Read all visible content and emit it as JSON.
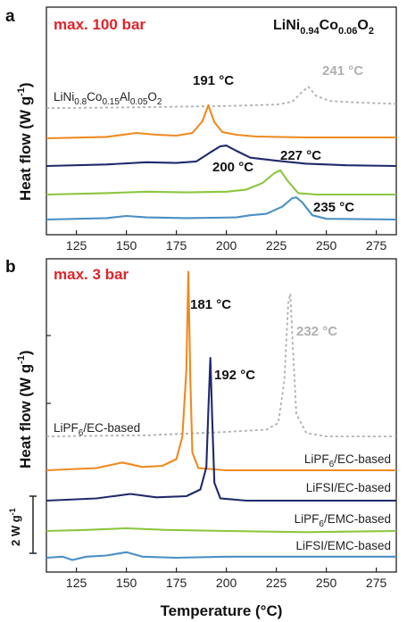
{
  "colors": {
    "orange": "#ef8a1f",
    "navy": "#1f2a6b",
    "green": "#8cc63f",
    "blue": "#4a8fc4",
    "gray": "#b0b0b0",
    "red": "#e0242a"
  },
  "chart_data": [
    {
      "panel": "a",
      "type": "line",
      "condition": "max. 100 bar",
      "formula": {
        "base": "LiNi",
        "s1": "0.94",
        "mid": "Co",
        "s2": "0.06",
        "end": "O",
        "s3": "2"
      },
      "ylabel": {
        "main": "Heat flow (W g",
        "sup": "-1",
        "close": ")"
      },
      "xlim": [
        110,
        285
      ],
      "x_ticks": [
        "125",
        "150",
        "175",
        "200",
        "225",
        "250",
        "275"
      ],
      "reference_label": {
        "a": "LiNi",
        "s1": "0.8",
        "b": "Co",
        "s2": "0.15",
        "c": "Al",
        "s3": "0.05",
        "d": "O",
        "s4": "2"
      },
      "series": [
        {
          "color": "gray",
          "dashed": true,
          "peak_x": 241,
          "peak_label": "241 °C",
          "x": [
            110,
            150,
            200,
            225,
            233,
            238,
            241,
            245,
            252,
            265,
            285
          ],
          "y": [
            0.05,
            0.1,
            0.2,
            0.3,
            0.5,
            1.2,
            1.55,
            0.9,
            0.55,
            0.45,
            0.35
          ]
        },
        {
          "color": "orange",
          "dashed": false,
          "peak_x": 191,
          "peak_label": "191 °C",
          "x": [
            110,
            140,
            155,
            165,
            175,
            183,
            188,
            191,
            194,
            198,
            205,
            215,
            240,
            285
          ],
          "y": [
            0.0,
            0.08,
            0.3,
            0.2,
            0.15,
            0.3,
            0.95,
            1.85,
            0.9,
            0.35,
            0.2,
            0.1,
            0.05,
            0.05
          ]
        },
        {
          "color": "navy",
          "dashed": false,
          "peak_x": 200,
          "peak_label": "200 °C",
          "x": [
            110,
            140,
            160,
            175,
            185,
            192,
            197,
            200,
            205,
            212,
            225,
            240,
            260,
            285
          ],
          "y": [
            0.0,
            0.1,
            0.25,
            0.2,
            0.3,
            0.9,
            1.3,
            1.35,
            1.0,
            0.55,
            0.35,
            0.15,
            0.05,
            0.0
          ]
        },
        {
          "color": "green",
          "dashed": false,
          "peak_x": 227,
          "peak_label": "227 °C",
          "x": [
            110,
            140,
            160,
            180,
            200,
            210,
            218,
            224,
            227,
            231,
            236,
            245,
            285
          ],
          "y": [
            0.0,
            0.1,
            0.2,
            0.15,
            0.2,
            0.35,
            0.8,
            1.5,
            1.7,
            0.9,
            0.1,
            0.0,
            0.0
          ]
        },
        {
          "color": "blue",
          "dashed": false,
          "peak_x": 235,
          "peak_label": "235 °C",
          "x": [
            110,
            140,
            150,
            160,
            180,
            205,
            212,
            220,
            228,
            233,
            235,
            238,
            243,
            250,
            285
          ],
          "y": [
            0.0,
            0.1,
            0.25,
            0.15,
            0.1,
            0.15,
            0.3,
            0.4,
            0.9,
            1.5,
            1.55,
            1.2,
            0.3,
            0.05,
            0.0
          ]
        }
      ]
    },
    {
      "panel": "b",
      "type": "line",
      "condition": "max. 3 bar",
      "ylabel": {
        "main": "Heat flow (W g",
        "sup": "-1",
        "close": ")"
      },
      "xlabel": {
        "main": "Temperature (",
        "deg": "°C",
        "close": ")"
      },
      "xlim": [
        110,
        285
      ],
      "x_ticks": [
        "125",
        "150",
        "175",
        "200",
        "225",
        "250",
        "275"
      ],
      "scale_bar": "2 W g",
      "scale_bar_sup": "-1",
      "series": [
        {
          "color": "gray",
          "dashed": true,
          "peak_x": 232,
          "peak_label": "232 °C",
          "label": {
            "a": "LiPF",
            "s1": "6",
            "b": "/EC-based"
          },
          "x": [
            110,
            160,
            200,
            220,
            226,
            229,
            231,
            232,
            233,
            235,
            240,
            250,
            285
          ],
          "y": [
            0.0,
            0.05,
            0.2,
            0.3,
            0.6,
            2.5,
            6.0,
            6.4,
            4.5,
            1.0,
            0.15,
            0.0,
            0.0
          ]
        },
        {
          "color": "orange",
          "dashed": false,
          "peak_x": 181,
          "peak_label": "181 °C",
          "label": {
            "a": "LiPF",
            "s1": "6",
            "b": "/EC-based"
          },
          "x": [
            110,
            135,
            148,
            158,
            168,
            175,
            178,
            180,
            181,
            182,
            183,
            186,
            200,
            285
          ],
          "y": [
            0.0,
            0.1,
            0.35,
            0.15,
            0.2,
            0.5,
            1.5,
            4.5,
            8.9,
            4.0,
            0.8,
            0.1,
            0.0,
            0.0
          ]
        },
        {
          "color": "navy",
          "dashed": false,
          "peak_x": 192,
          "peak_label": "192 °C",
          "label": {
            "a": "LiFSI/EC-based",
            "s1": "",
            "b": ""
          },
          "x": [
            110,
            135,
            152,
            165,
            180,
            187,
            190,
            191,
            192,
            193,
            194,
            197,
            210,
            285
          ],
          "y": [
            0.0,
            0.1,
            0.3,
            0.15,
            0.2,
            0.5,
            1.5,
            4.0,
            6.4,
            3.5,
            0.8,
            0.1,
            0.0,
            0.0
          ]
        },
        {
          "color": "green",
          "dashed": false,
          "label": {
            "a": "LiPF",
            "s1": "6",
            "b": "/EMC-based"
          },
          "x": [
            110,
            130,
            150,
            170,
            200,
            240,
            285
          ],
          "y": [
            0.0,
            0.05,
            0.12,
            0.05,
            0.0,
            -0.05,
            0.0
          ]
        },
        {
          "color": "blue",
          "dashed": false,
          "label": {
            "a": "LiFSI/EMC-based",
            "s1": "",
            "b": ""
          },
          "x": [
            110,
            118,
            123,
            130,
            140,
            150,
            158,
            175,
            200,
            240,
            285
          ],
          "y": [
            0.0,
            0.05,
            -0.1,
            0.05,
            0.1,
            0.25,
            0.05,
            0.0,
            0.05,
            0.05,
            0.05
          ]
        }
      ]
    }
  ]
}
